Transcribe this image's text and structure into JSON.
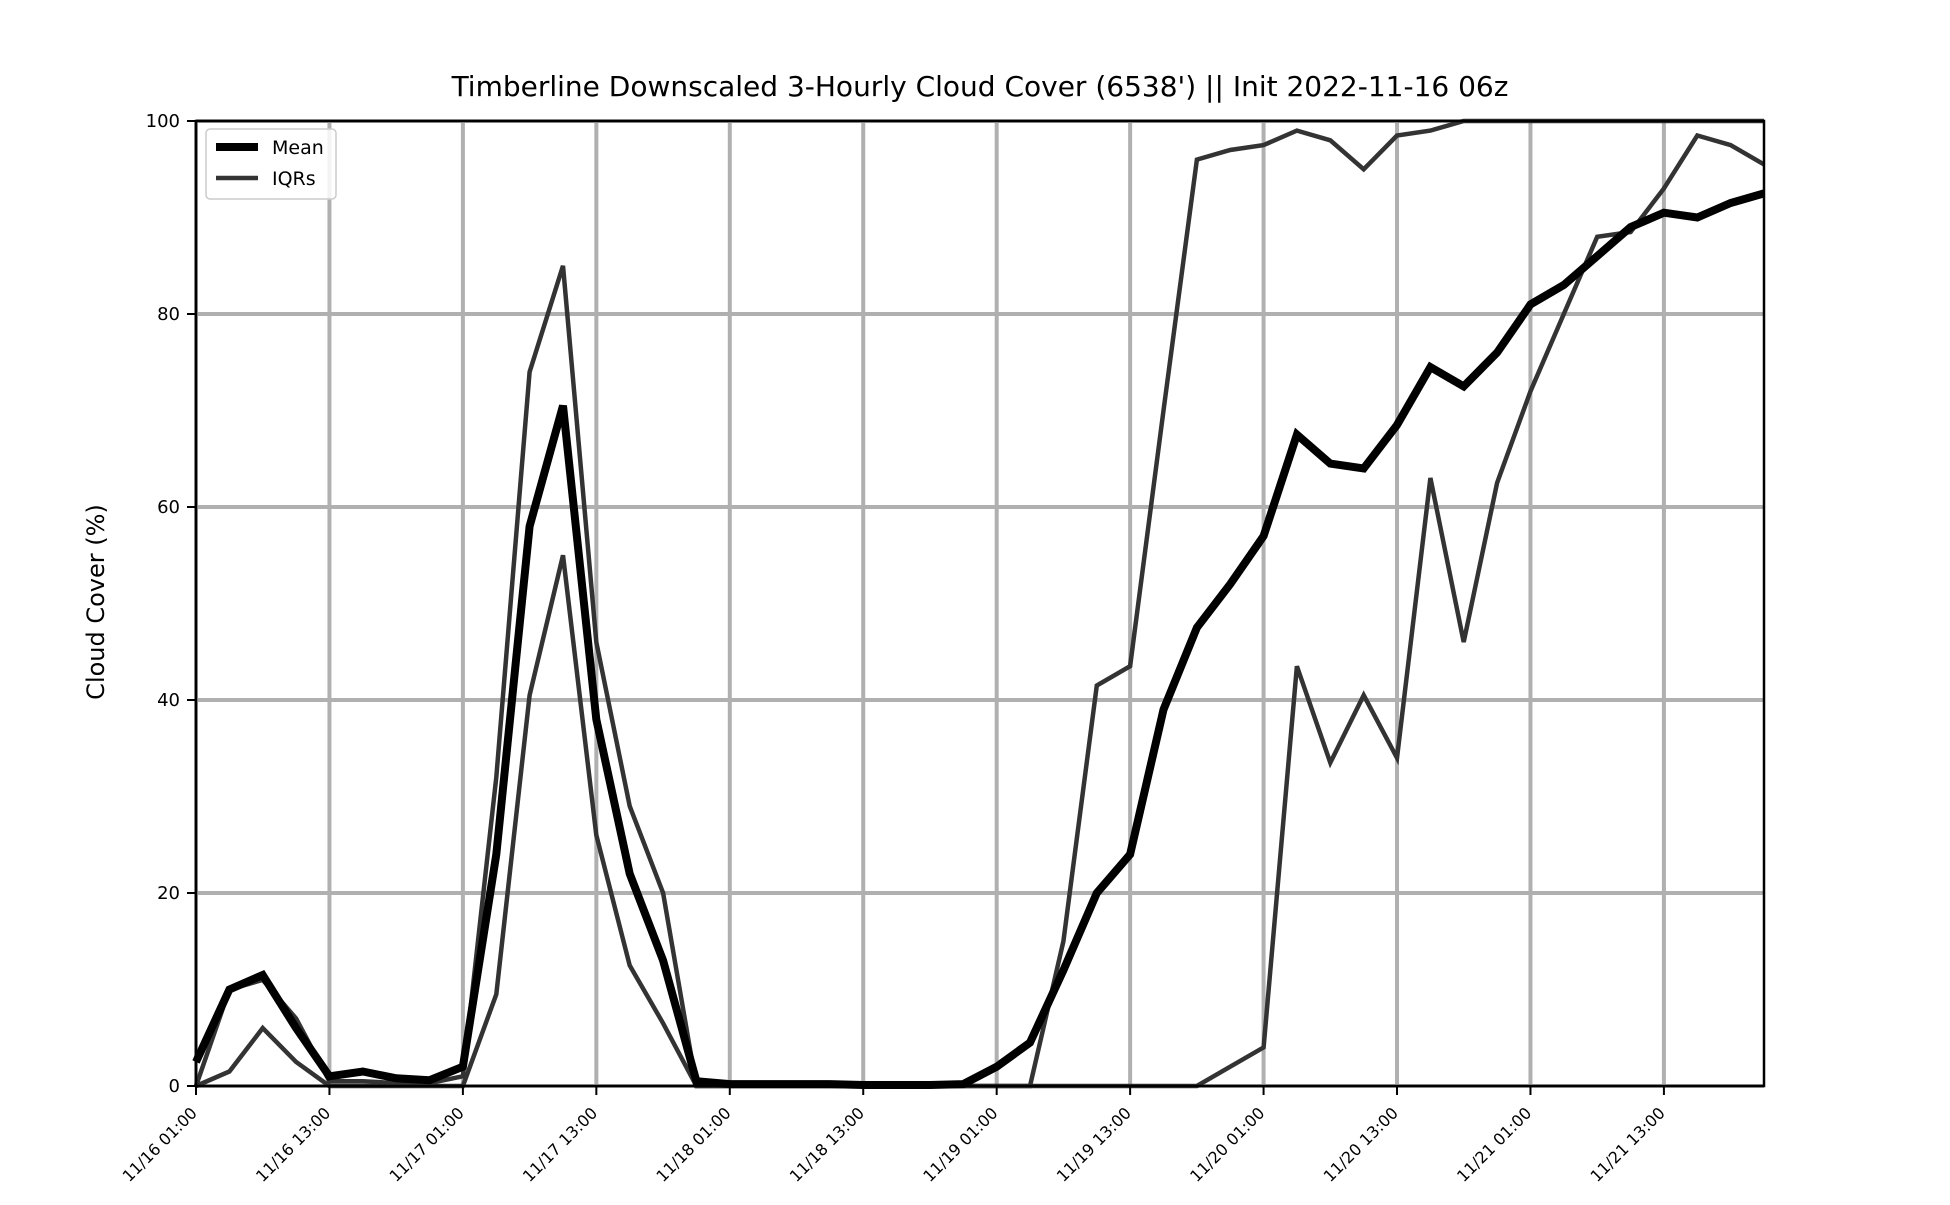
{
  "chart_data": {
    "type": "line",
    "title": "Timberline Downscaled 3-Hourly Cloud Cover (6538') || Init 2022-11-16 06z",
    "xlabel": "",
    "ylabel": "Cloud Cover (%)",
    "ylim": [
      0,
      100
    ],
    "y_ticks": [
      "0",
      "20",
      "40",
      "60",
      "80",
      "100"
    ],
    "x_ticks": [
      "11/16 01:00",
      "11/16 13:00",
      "11/17 01:00",
      "11/17 13:00",
      "11/18 01:00",
      "11/18 13:00",
      "11/19 01:00",
      "11/19 13:00",
      "11/20 01:00",
      "11/20 13:00",
      "11/21 01:00",
      "11/21 13:00"
    ],
    "x": [
      "11/16 01:00",
      "11/16 04:00",
      "11/16 07:00",
      "11/16 10:00",
      "11/16 13:00",
      "11/16 16:00",
      "11/16 19:00",
      "11/16 22:00",
      "11/17 01:00",
      "11/17 04:00",
      "11/17 07:00",
      "11/17 10:00",
      "11/17 13:00",
      "11/17 16:00",
      "11/17 19:00",
      "11/17 22:00",
      "11/18 01:00",
      "11/18 04:00",
      "11/18 07:00",
      "11/18 10:00",
      "11/18 13:00",
      "11/18 16:00",
      "11/18 19:00",
      "11/18 22:00",
      "11/19 01:00",
      "11/19 04:00",
      "11/19 07:00",
      "11/19 10:00",
      "11/19 13:00",
      "11/19 16:00",
      "11/19 19:00",
      "11/19 22:00",
      "11/20 01:00",
      "11/20 04:00",
      "11/20 07:00",
      "11/20 10:00",
      "11/20 13:00",
      "11/20 16:00",
      "11/20 19:00",
      "11/20 22:00",
      "11/21 01:00",
      "11/21 04:00",
      "11/21 07:00",
      "11/21 10:00",
      "11/21 13:00",
      "11/21 16:00",
      "11/21 19:00",
      "11/21 22:00"
    ],
    "grid": true,
    "legend_position": "top-left",
    "series": [
      {
        "name": "Mean",
        "color": "#000000",
        "values": [
          2.5,
          10,
          11.5,
          6,
          1,
          1.5,
          0.8,
          0.6,
          2,
          24,
          58,
          70.5,
          38,
          22,
          13,
          0.5,
          0.2,
          0.2,
          0.2,
          0.2,
          0.1,
          0.1,
          0.1,
          0.2,
          2,
          4.5,
          12,
          20,
          24,
          39,
          47.5,
          52,
          57,
          67.5,
          64.5,
          64,
          68.5,
          74.5,
          72.5,
          76,
          81,
          83,
          86,
          89,
          90.5,
          90,
          91.5,
          92.5
        ]
      },
      {
        "name": "IQRs",
        "color": "#333333",
        "values": [
          0,
          10,
          11,
          7,
          0.5,
          0.5,
          0.3,
          0.3,
          1,
          32,
          74,
          85,
          46,
          29,
          20,
          0,
          0,
          0,
          0,
          0,
          0,
          0,
          0,
          0,
          0,
          0,
          15,
          41.5,
          43.5,
          70,
          96,
          97,
          97.5,
          99,
          98,
          95,
          98.5,
          99,
          100,
          100,
          100,
          100,
          100,
          100,
          100,
          100,
          100,
          100
        ]
      },
      {
        "name": "",
        "color": "#333333",
        "values": [
          0,
          1.5,
          6,
          2.5,
          0,
          0,
          0,
          0,
          0,
          9.5,
          40.5,
          55,
          26,
          12.5,
          6.5,
          0,
          0,
          0,
          0,
          0,
          0,
          0,
          0,
          0,
          0,
          0,
          0,
          0,
          0,
          0,
          0,
          2,
          4,
          43.5,
          33.5,
          40.5,
          34,
          63,
          46,
          62.5,
          72,
          80,
          88,
          88.5,
          93,
          98.5,
          97.5,
          95.5
        ]
      }
    ]
  }
}
